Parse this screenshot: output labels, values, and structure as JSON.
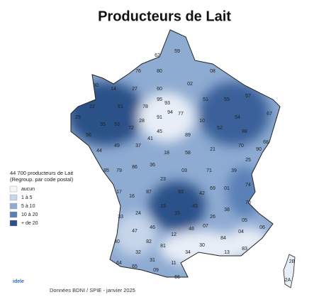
{
  "header": {
    "title": "Producteurs de Lait"
  },
  "legend": {
    "title": "44 700 producteurs de Lait",
    "subtitle": "(Regroup. par code postal)",
    "items": [
      {
        "label": "aucun",
        "color": "#f3f6fb"
      },
      {
        "label": "1 à 5",
        "color": "#c6d5ea"
      },
      {
        "label": "5 à 10",
        "color": "#8eabd2"
      },
      {
        "label": "10 à 20",
        "color": "#5a80b7"
      },
      {
        "label": "+ de 20",
        "color": "#2c5188"
      }
    ]
  },
  "departments": [
    "62",
    "59",
    "80",
    "02",
    "08",
    "76",
    "60",
    "95",
    "78",
    "93",
    "94",
    "51",
    "55",
    "57",
    "67",
    "54",
    "88",
    "68",
    "27",
    "14",
    "50",
    "61",
    "28",
    "91",
    "77",
    "10",
    "52",
    "70",
    "25",
    "90",
    "29",
    "22",
    "35",
    "53",
    "72",
    "45",
    "89",
    "21",
    "39",
    "56",
    "44",
    "49",
    "37",
    "41",
    "18",
    "58",
    "71",
    "01",
    "74",
    "73",
    "85",
    "79",
    "86",
    "36",
    "03",
    "69",
    "42",
    "38",
    "17",
    "16",
    "87",
    "23",
    "63",
    "43",
    "26",
    "05",
    "24",
    "19",
    "15",
    "07",
    "48",
    "30",
    "33",
    "46",
    "12",
    "81",
    "84",
    "04",
    "06",
    "83",
    "13",
    "47",
    "82",
    "34",
    "40",
    "32",
    "31",
    "11",
    "64",
    "65",
    "09",
    "66",
    "2B",
    "2A"
  ],
  "footer": {
    "source": "Données BDNI / SPIE - janvier 2025",
    "logo": "idele"
  }
}
